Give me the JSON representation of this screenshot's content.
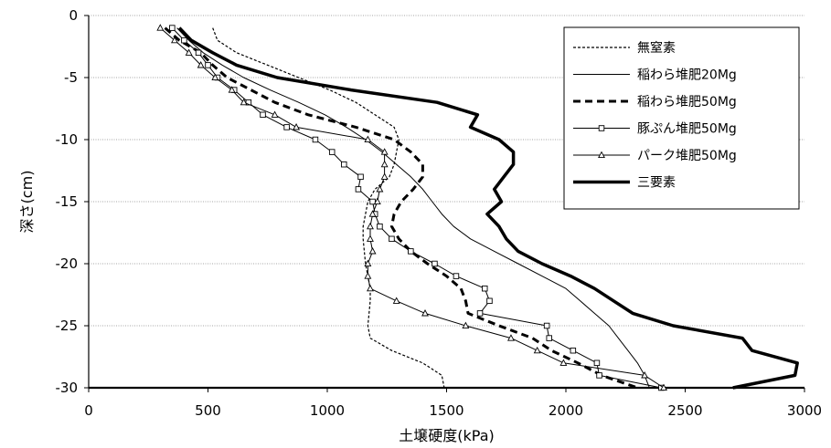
{
  "chart_data": {
    "type": "line",
    "title": "",
    "xlabel": "土壌硬度(kPa)",
    "ylabel": "深さ(cm)",
    "xlim": [
      0,
      3000
    ],
    "ylim": [
      -30,
      0
    ],
    "x_ticks": [
      "0",
      "500",
      "1000",
      "1500",
      "2000",
      "2500",
      "3000"
    ],
    "y_ticks": [
      "0",
      "-5",
      "-10",
      "-15",
      "-20",
      "-25",
      "-30"
    ],
    "grid": "horizontal",
    "legend_position": "top-right",
    "series": [
      {
        "name": "無窒素",
        "style": "dotted",
        "marker": "none",
        "points": [
          [
            520,
            -1
          ],
          [
            540,
            -2
          ],
          [
            620,
            -3
          ],
          [
            750,
            -4
          ],
          [
            880,
            -5
          ],
          [
            1010,
            -6
          ],
          [
            1120,
            -7
          ],
          [
            1200,
            -8
          ],
          [
            1280,
            -9
          ],
          [
            1300,
            -10
          ],
          [
            1290,
            -11
          ],
          [
            1280,
            -12
          ],
          [
            1260,
            -13
          ],
          [
            1200,
            -14
          ],
          [
            1170,
            -15
          ],
          [
            1160,
            -16
          ],
          [
            1150,
            -17
          ],
          [
            1150,
            -18
          ],
          [
            1155,
            -19
          ],
          [
            1160,
            -20
          ],
          [
            1170,
            -21
          ],
          [
            1180,
            -22
          ],
          [
            1180,
            -23
          ],
          [
            1175,
            -24
          ],
          [
            1170,
            -25
          ],
          [
            1180,
            -26
          ],
          [
            1270,
            -27
          ],
          [
            1400,
            -28
          ],
          [
            1480,
            -29
          ],
          [
            1490,
            -30
          ]
        ]
      },
      {
        "name": "稲わら堆肥20Mg",
        "style": "solid",
        "marker": "none",
        "points": [
          [
            370,
            -1
          ],
          [
            420,
            -2
          ],
          [
            480,
            -3
          ],
          [
            560,
            -4
          ],
          [
            650,
            -5
          ],
          [
            760,
            -6
          ],
          [
            880,
            -7
          ],
          [
            990,
            -8
          ],
          [
            1080,
            -9
          ],
          [
            1160,
            -10
          ],
          [
            1230,
            -11
          ],
          [
            1290,
            -12
          ],
          [
            1350,
            -13
          ],
          [
            1400,
            -14
          ],
          [
            1440,
            -15
          ],
          [
            1480,
            -16
          ],
          [
            1530,
            -17
          ],
          [
            1600,
            -18
          ],
          [
            1700,
            -19
          ],
          [
            1800,
            -20
          ],
          [
            1900,
            -21
          ],
          [
            2000,
            -22
          ],
          [
            2060,
            -23
          ],
          [
            2120,
            -24
          ],
          [
            2180,
            -25
          ],
          [
            2220,
            -26
          ],
          [
            2260,
            -27
          ],
          [
            2300,
            -28
          ],
          [
            2330,
            -29
          ],
          [
            2350,
            -30
          ]
        ]
      },
      {
        "name": "稲わら堆肥50Mg",
        "style": "dashed",
        "marker": "none",
        "points": [
          [
            320,
            -1
          ],
          [
            380,
            -2
          ],
          [
            470,
            -3
          ],
          [
            520,
            -4
          ],
          [
            580,
            -5
          ],
          [
            680,
            -6
          ],
          [
            780,
            -7
          ],
          [
            920,
            -8
          ],
          [
            1120,
            -9
          ],
          [
            1280,
            -10
          ],
          [
            1350,
            -11
          ],
          [
            1400,
            -12
          ],
          [
            1400,
            -13
          ],
          [
            1360,
            -14
          ],
          [
            1310,
            -15
          ],
          [
            1280,
            -16
          ],
          [
            1270,
            -17
          ],
          [
            1300,
            -18
          ],
          [
            1350,
            -19
          ],
          [
            1420,
            -20
          ],
          [
            1500,
            -21
          ],
          [
            1560,
            -22
          ],
          [
            1580,
            -23
          ],
          [
            1590,
            -24
          ],
          [
            1720,
            -25
          ],
          [
            1860,
            -26
          ],
          [
            1940,
            -27
          ],
          [
            2050,
            -28
          ],
          [
            2150,
            -29
          ],
          [
            2300,
            -30
          ]
        ]
      },
      {
        "name": "豚ぷん堆肥50Mg",
        "style": "solid",
        "marker": "square",
        "points": [
          [
            350,
            -1
          ],
          [
            400,
            -2
          ],
          [
            460,
            -3
          ],
          [
            500,
            -4
          ],
          [
            540,
            -5
          ],
          [
            610,
            -6
          ],
          [
            670,
            -7
          ],
          [
            730,
            -8
          ],
          [
            830,
            -9
          ],
          [
            950,
            -10
          ],
          [
            1020,
            -11
          ],
          [
            1070,
            -12
          ],
          [
            1140,
            -13
          ],
          [
            1130,
            -14
          ],
          [
            1190,
            -15
          ],
          [
            1200,
            -16
          ],
          [
            1220,
            -17
          ],
          [
            1270,
            -18
          ],
          [
            1350,
            -19
          ],
          [
            1450,
            -20
          ],
          [
            1540,
            -21
          ],
          [
            1660,
            -22
          ],
          [
            1680,
            -23
          ],
          [
            1640,
            -24
          ],
          [
            1920,
            -25
          ],
          [
            1930,
            -26
          ],
          [
            2030,
            -27
          ],
          [
            2130,
            -28
          ],
          [
            2140,
            -29
          ],
          [
            2400,
            -30
          ]
        ]
      },
      {
        "name": "パーク堆肥50Mg",
        "style": "solid",
        "marker": "triangle",
        "points": [
          [
            300,
            -1
          ],
          [
            360,
            -2
          ],
          [
            420,
            -3
          ],
          [
            470,
            -4
          ],
          [
            530,
            -5
          ],
          [
            600,
            -6
          ],
          [
            650,
            -7
          ],
          [
            780,
            -8
          ],
          [
            870,
            -9
          ],
          [
            1170,
            -10
          ],
          [
            1240,
            -11
          ],
          [
            1240,
            -12
          ],
          [
            1240,
            -13
          ],
          [
            1220,
            -14
          ],
          [
            1210,
            -15
          ],
          [
            1190,
            -16
          ],
          [
            1180,
            -17
          ],
          [
            1180,
            -18
          ],
          [
            1190,
            -19
          ],
          [
            1170,
            -20
          ],
          [
            1170,
            -21
          ],
          [
            1180,
            -22
          ],
          [
            1290,
            -23
          ],
          [
            1410,
            -24
          ],
          [
            1580,
            -25
          ],
          [
            1770,
            -26
          ],
          [
            1880,
            -27
          ],
          [
            1990,
            -28
          ],
          [
            2330,
            -29
          ],
          [
            2410,
            -30
          ]
        ]
      },
      {
        "name": "三要素",
        "style": "bold",
        "marker": "none",
        "points": [
          [
            380,
            -1
          ],
          [
            430,
            -2
          ],
          [
            520,
            -3
          ],
          [
            620,
            -4
          ],
          [
            790,
            -5
          ],
          [
            1100,
            -6
          ],
          [
            1460,
            -7
          ],
          [
            1630,
            -8
          ],
          [
            1600,
            -9
          ],
          [
            1720,
            -10
          ],
          [
            1780,
            -11
          ],
          [
            1780,
            -12
          ],
          [
            1740,
            -13
          ],
          [
            1700,
            -14
          ],
          [
            1730,
            -15
          ],
          [
            1670,
            -16
          ],
          [
            1720,
            -17
          ],
          [
            1750,
            -18
          ],
          [
            1800,
            -19
          ],
          [
            1900,
            -20
          ],
          [
            2020,
            -21
          ],
          [
            2120,
            -22
          ],
          [
            2200,
            -23
          ],
          [
            2280,
            -24
          ],
          [
            2450,
            -25
          ],
          [
            2740,
            -26
          ],
          [
            2780,
            -27
          ],
          [
            2970,
            -28
          ],
          [
            2960,
            -29
          ],
          [
            2700,
            -30
          ]
        ]
      }
    ]
  }
}
